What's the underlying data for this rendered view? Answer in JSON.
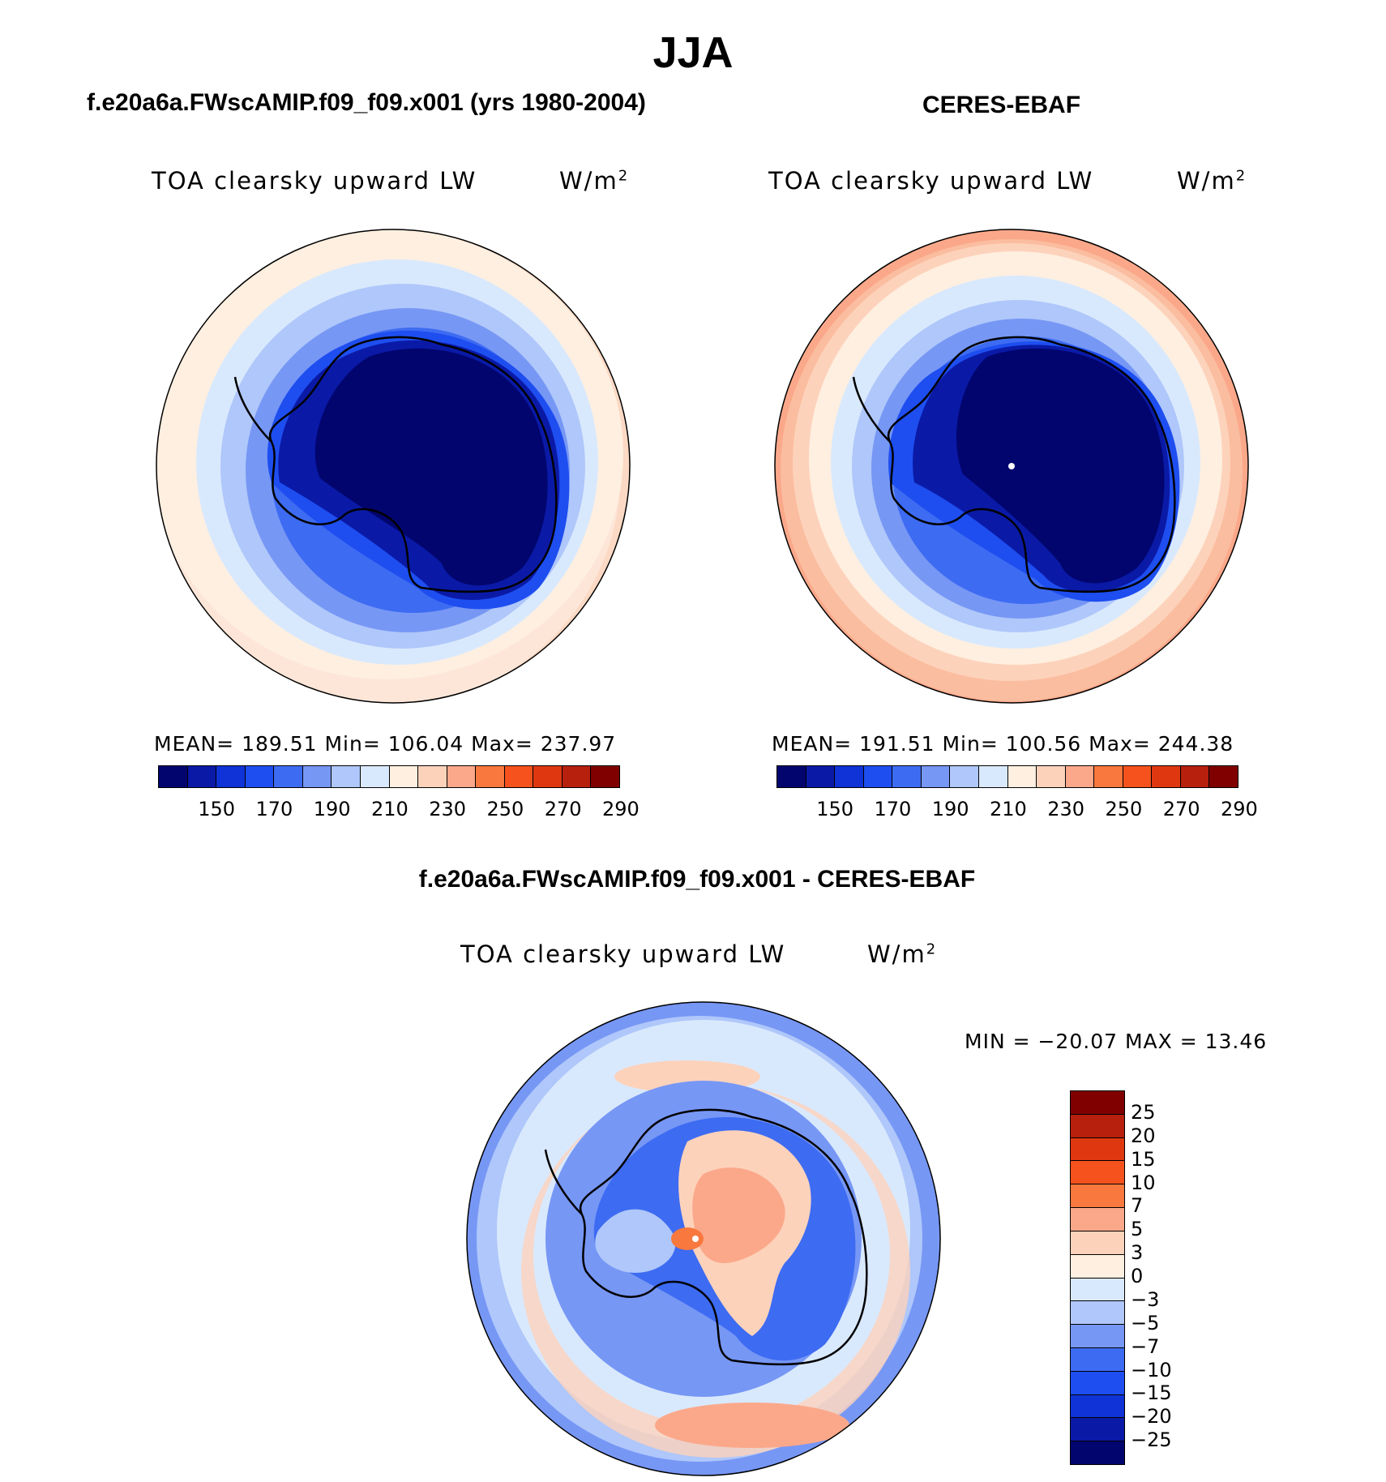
{
  "title": "JJA",
  "colors": {
    "scale16": [
      "#02056e",
      "#0a1aa7",
      "#0f33d6",
      "#1e4ef0",
      "#3d6bf2",
      "#7797f5",
      "#afc7fa",
      "#d9e9fd",
      "#feefe0",
      "#fdd2bb",
      "#fba88a",
      "#f9783e",
      "#f5521d",
      "#df3810",
      "#b7200c",
      "#800000"
    ],
    "diff_scale16": [
      "#800000",
      "#b7200c",
      "#df3810",
      "#f5521d",
      "#f9783e",
      "#fba88a",
      "#fdd2bb",
      "#feefe0",
      "#d9e9fd",
      "#afc7fa",
      "#7797f5",
      "#3d6bf2",
      "#1e4ef0",
      "#0f33d6",
      "#0a1aa7",
      "#02056e"
    ]
  },
  "panels": [
    {
      "title": "f.e20a6a.FWscAMIP.f09_f09.x001 (yrs 1980-2004)",
      "variable": "TOA clearsky upward LW",
      "units": "W/m",
      "units_sup": "2",
      "stats": "MEAN= 189.51   Min= 106.04   Max= 237.97",
      "mean": 189.51,
      "min": 106.04,
      "max": 237.97,
      "ticks": [
        "150",
        "170",
        "190",
        "210",
        "230",
        "250",
        "270",
        "290"
      ]
    },
    {
      "title": "CERES-EBAF",
      "variable": "TOA clearsky upward LW",
      "units": "W/m",
      "units_sup": "2",
      "stats": "MEAN= 191.51   Min= 100.56   Max= 244.38",
      "mean": 191.51,
      "min": 100.56,
      "max": 244.38,
      "ticks": [
        "150",
        "170",
        "190",
        "210",
        "230",
        "250",
        "270",
        "290"
      ]
    }
  ],
  "diff": {
    "title": "f.e20a6a.FWscAMIP.f09_f09.x001 - CERES-EBAF",
    "variable": "TOA clearsky upward LW",
    "units": "W/m",
    "units_sup": "2",
    "stats": "MIN = −20.07 MAX =   13.46",
    "min": -20.07,
    "max": 13.46,
    "ticks": [
      "25",
      "20",
      "15",
      "10",
      "7",
      "5",
      "3",
      "0",
      "−3",
      "−5",
      "−7",
      "−10",
      "−15",
      "−20",
      "−25"
    ]
  }
}
